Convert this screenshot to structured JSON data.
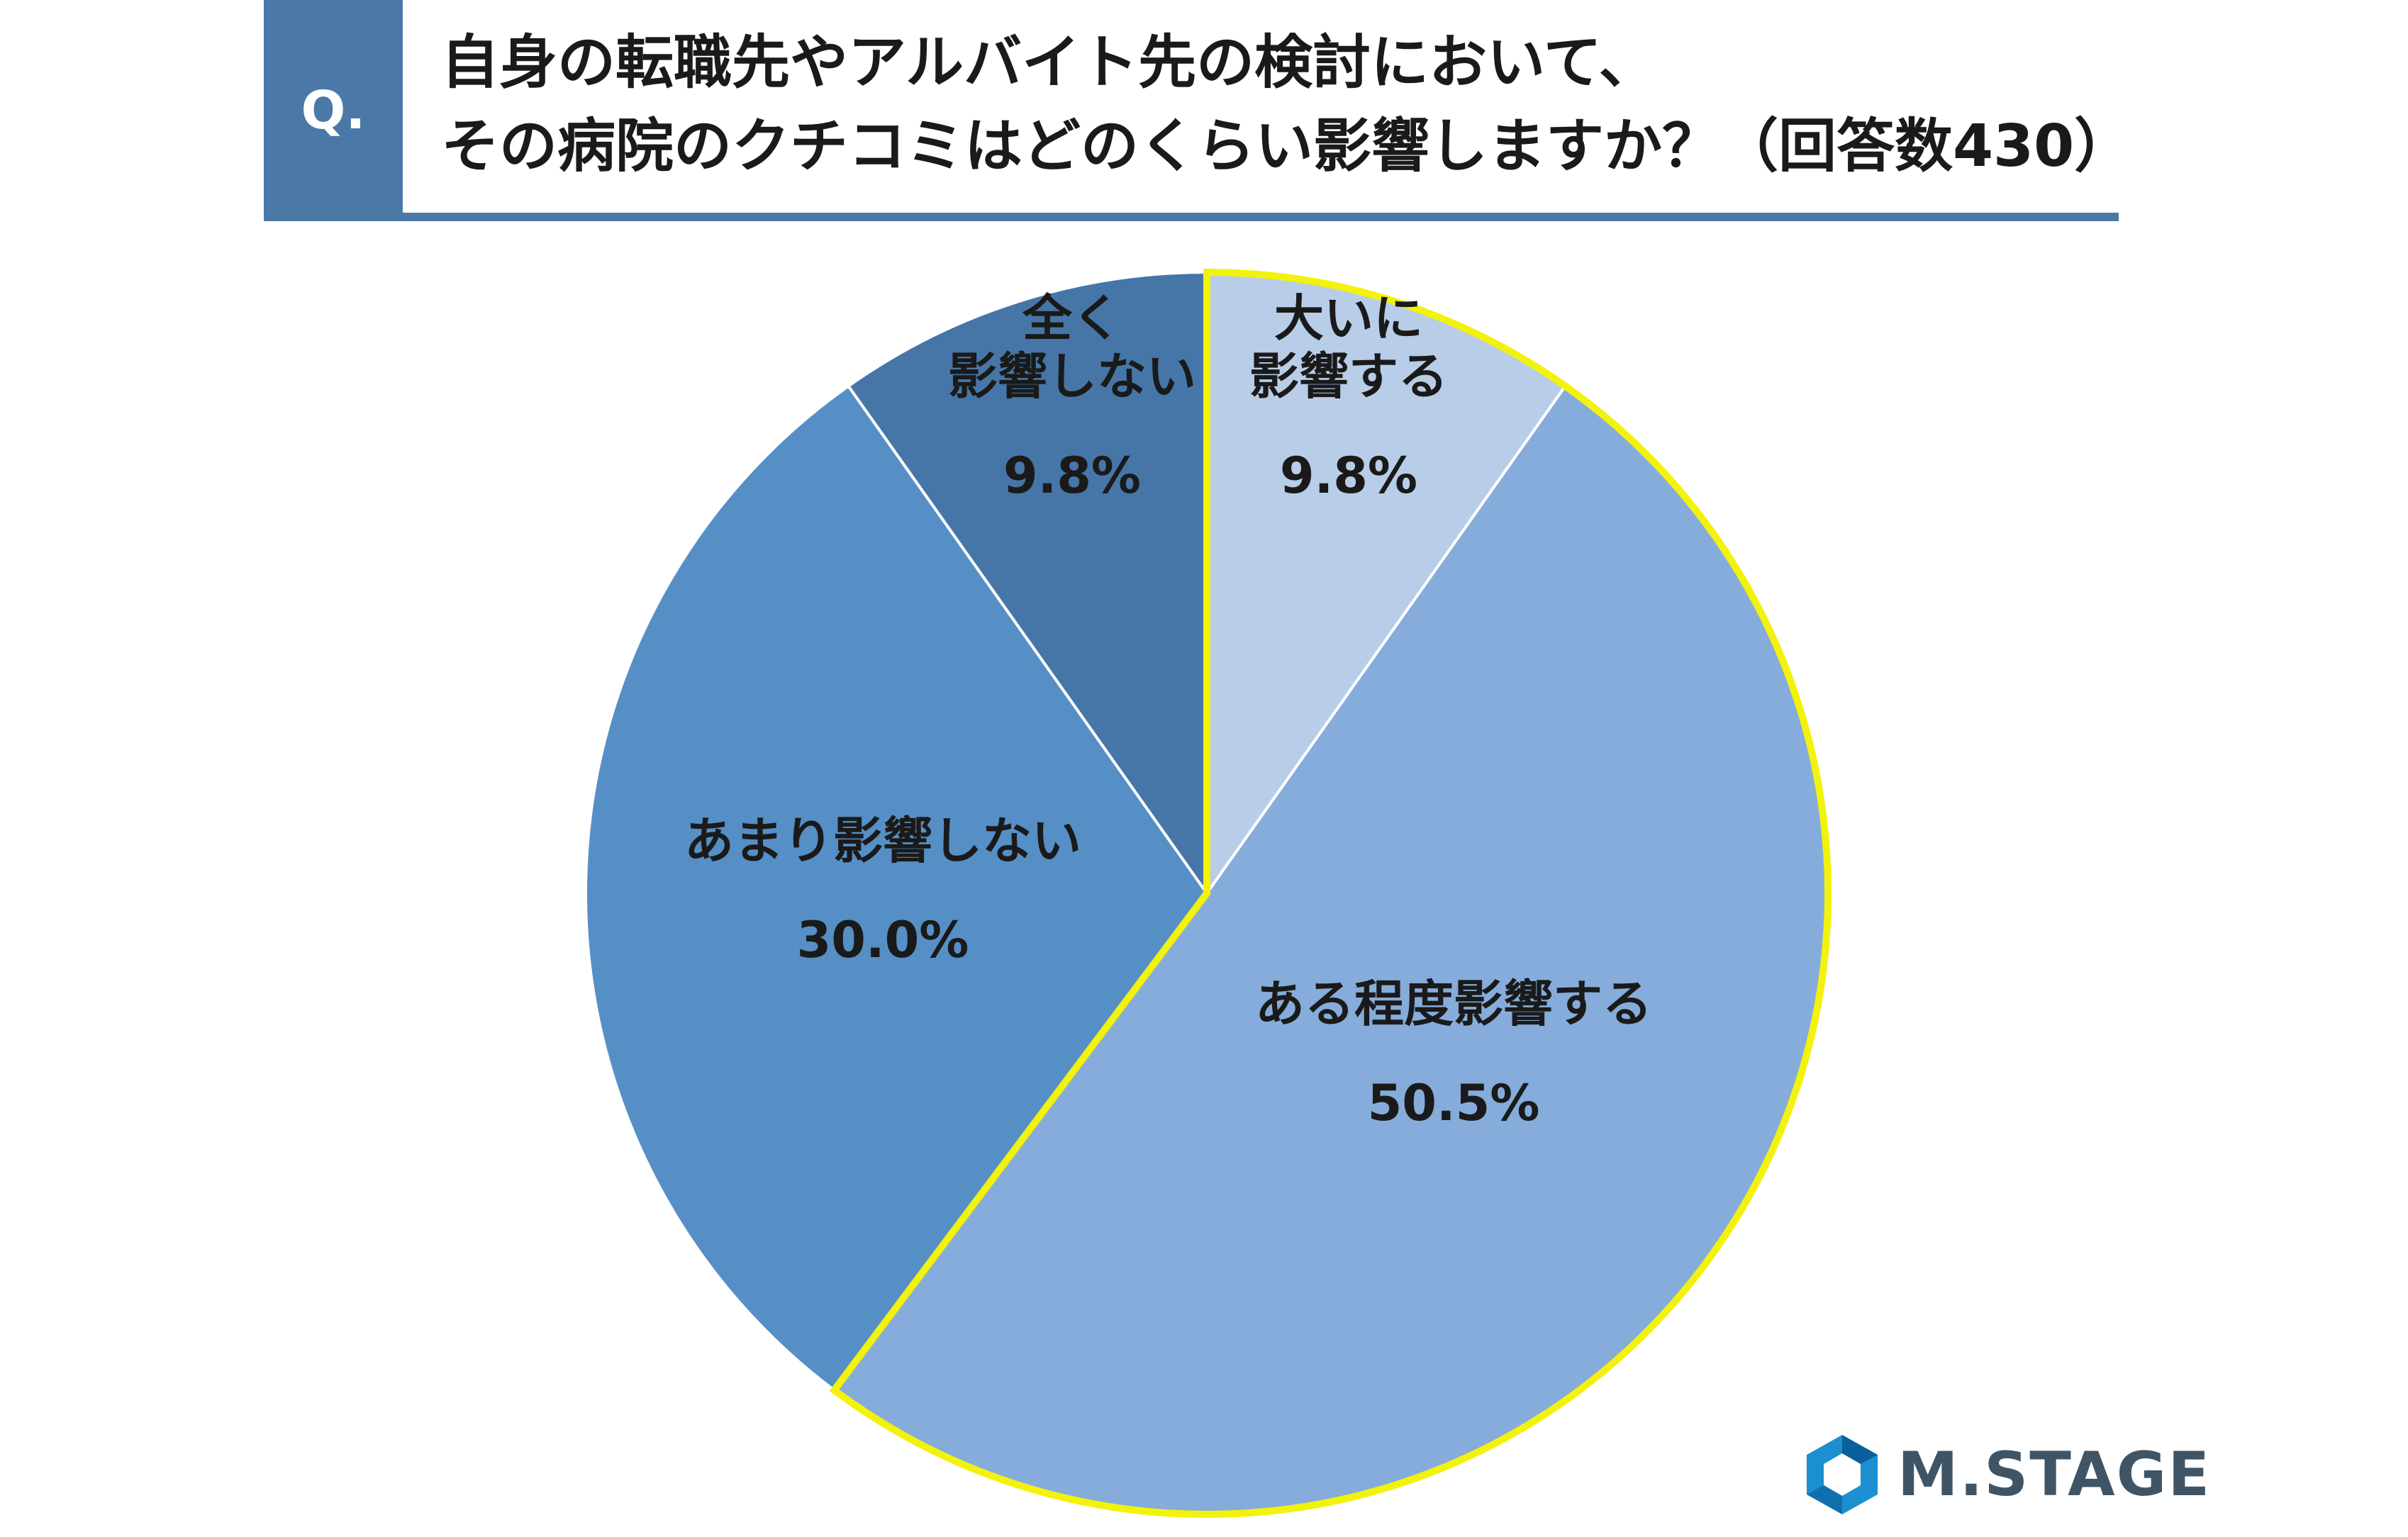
{
  "header": {
    "badge": "Q.",
    "title_line1": "自身の転職先やアルバイト先の検討において、",
    "title_line2": "その病院のクチコミはどのくらい影響しますか？（回答数430）"
  },
  "chart_data": {
    "type": "pie",
    "start_angle_deg": 0,
    "direction": "clockwise",
    "slices": [
      {
        "label_lines": [
          "大いに",
          "影響する"
        ],
        "value": 9.8,
        "value_text": "9.8%",
        "color": "#b8cde8",
        "highlight": true
      },
      {
        "label_lines": [
          "ある程度影響する"
        ],
        "value": 50.5,
        "value_text": "50.5%",
        "color": "#85acda",
        "highlight": true
      },
      {
        "label_lines": [
          "あまり影響しない"
        ],
        "value": 30.0,
        "value_text": "30.0%",
        "color": "#568fc6",
        "highlight": false
      },
      {
        "label_lines": [
          "全く",
          "影響しない"
        ],
        "value": 9.8,
        "value_text": "9.8%",
        "color": "#4676a7",
        "highlight": false
      }
    ],
    "highlight_color": "#f2f20d",
    "divider_color": "#ffffff"
  },
  "logo": {
    "text": "M.STAGE",
    "icon": "hexagon-logo-icon"
  }
}
